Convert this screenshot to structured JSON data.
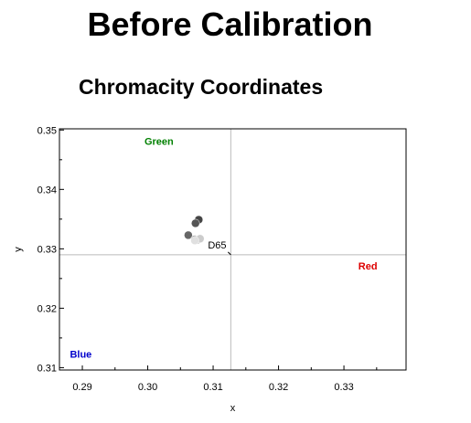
{
  "page": {
    "title": "Before Calibration"
  },
  "chart_data": {
    "type": "scatter",
    "title": "Chromacity Coordinates",
    "xlabel": "x",
    "ylabel": "y",
    "xlim": [
      0.2865,
      0.3395
    ],
    "ylim": [
      0.3096,
      0.3502
    ],
    "x_ticks": [
      0.29,
      0.3,
      0.31,
      0.32,
      0.33
    ],
    "x_tick_labels": [
      "0.29",
      "0.30",
      "0.31",
      "0.32",
      "0.33"
    ],
    "y_ticks": [
      0.31,
      0.32,
      0.33,
      0.34,
      0.35
    ],
    "y_tick_labels": [
      "0.31",
      "0.32",
      "0.33",
      "0.34",
      "0.35"
    ],
    "grid": false,
    "reference_lines": {
      "x": 0.3127,
      "y": 0.329
    },
    "reference_point": {
      "label": "D65",
      "x": 0.3127,
      "y": 0.329
    },
    "annotations": [
      {
        "text": "Green",
        "x": 0.2995,
        "y": 0.3475,
        "color": "#008000"
      },
      {
        "text": "Red",
        "x": 0.3322,
        "y": 0.3265,
        "color": "#dd0000"
      },
      {
        "text": "Blue",
        "x": 0.2881,
        "y": 0.3117,
        "color": "#0000cc"
      }
    ],
    "points": [
      {
        "x": 0.3078,
        "y": 0.3349,
        "color": "#444444"
      },
      {
        "x": 0.3073,
        "y": 0.3343,
        "color": "#555555"
      },
      {
        "x": 0.3062,
        "y": 0.3323,
        "color": "#666666"
      },
      {
        "x": 0.3072,
        "y": 0.3316,
        "color": "#999999"
      },
      {
        "x": 0.3076,
        "y": 0.3315,
        "color": "#bbbbbb"
      },
      {
        "x": 0.308,
        "y": 0.3317,
        "color": "#cccccc"
      },
      {
        "x": 0.3072,
        "y": 0.3314,
        "color": "#e0e0e0"
      }
    ]
  }
}
